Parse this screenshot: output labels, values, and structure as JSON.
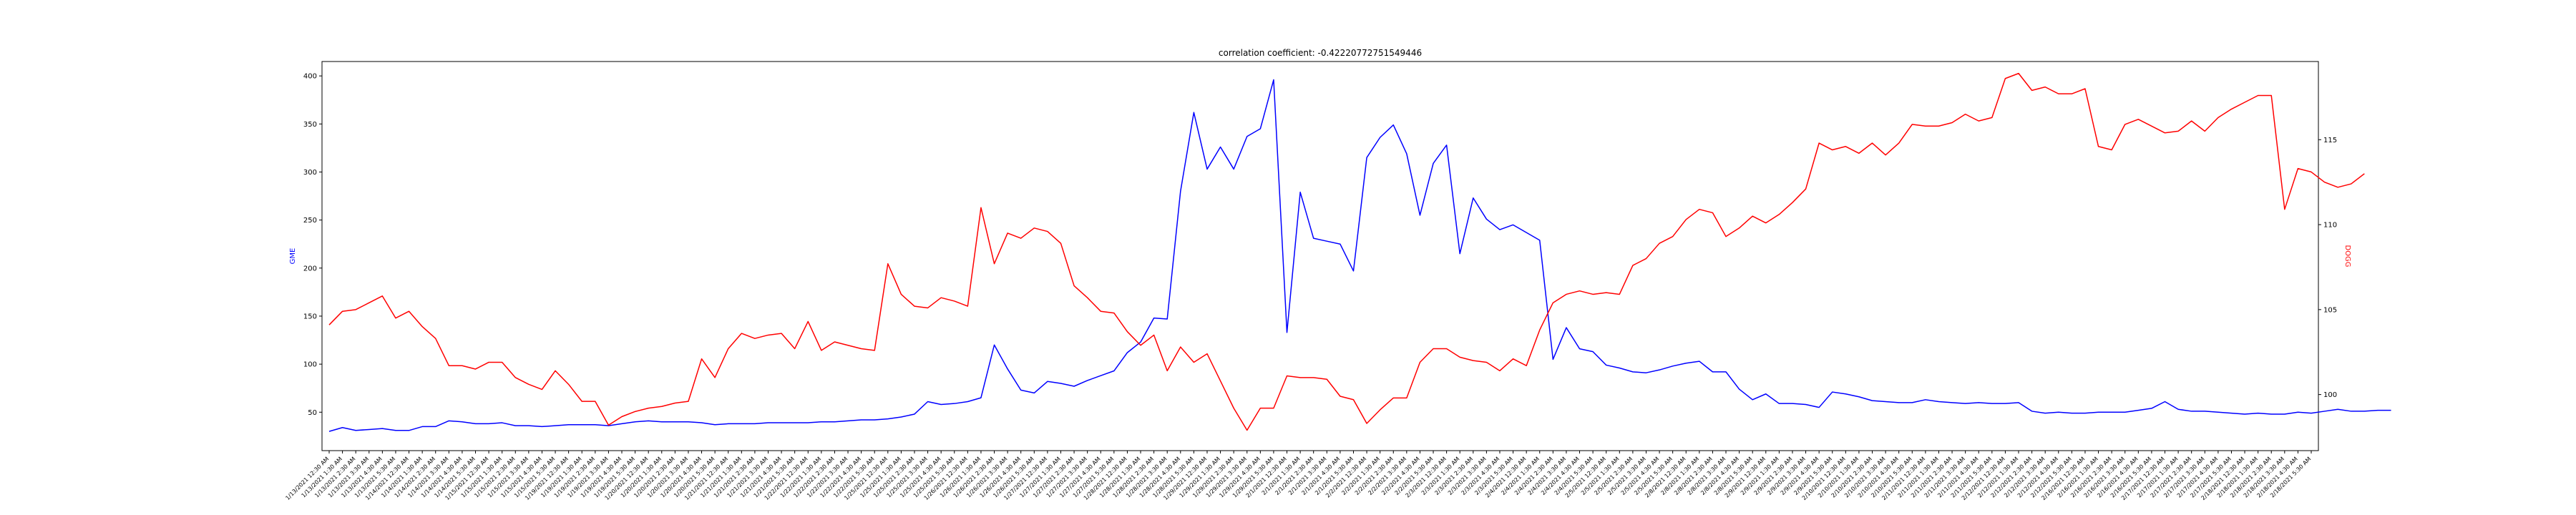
{
  "chart_data": {
    "type": "line",
    "title": "correlation coefficient: -0.42220772751549446",
    "y_left": {
      "label": "GME",
      "ylim": [
        10,
        415
      ],
      "ticks": [
        50,
        100,
        150,
        200,
        250,
        300,
        350,
        400
      ],
      "color": "#0000ff"
    },
    "y_right": {
      "label": "DOGG",
      "ylim": [
        96.7,
        119.6
      ],
      "ticks": [
        100,
        105,
        110,
        115
      ],
      "color": "#ff0000"
    },
    "x_labels": [
      "1/13/2021 12:30 AM",
      "1/13/2021 1:30 AM",
      "1/13/2021 2:30 AM",
      "1/13/2021 3:30 AM",
      "1/13/2021 4:30 AM",
      "1/13/2021 5:30 AM",
      "1/14/2021 12:30 AM",
      "1/14/2021 1:30 AM",
      "1/14/2021 2:30 AM",
      "1/14/2021 3:30 AM",
      "1/14/2021 4:30 AM",
      "1/14/2021 5:30 AM",
      "1/15/2021 12:30 AM",
      "1/15/2021 1:30 AM",
      "1/15/2021 2:30 AM",
      "1/15/2021 3:30 AM",
      "1/15/2021 4:30 AM",
      "1/15/2021 5:30 AM",
      "1/19/2021 12:30 AM",
      "1/19/2021 1:30 AM",
      "1/19/2021 2:30 AM",
      "1/19/2021 3:30 AM",
      "1/19/2021 4:30 AM",
      "1/19/2021 5:30 AM",
      "1/20/2021 12:30 AM",
      "1/20/2021 1:30 AM",
      "1/20/2021 2:30 AM",
      "1/20/2021 3:30 AM",
      "1/20/2021 4:30 AM",
      "1/20/2021 5:30 AM",
      "1/21/2021 12:30 AM",
      "1/21/2021 1:30 AM",
      "1/21/2021 2:30 AM",
      "1/21/2021 3:30 AM",
      "1/21/2021 4:30 AM",
      "1/21/2021 5:30 AM",
      "1/22/2021 12:30 AM",
      "1/22/2021 1:30 AM",
      "1/22/2021 2:30 AM",
      "1/22/2021 3:30 AM",
      "1/22/2021 4:30 AM",
      "1/22/2021 5:30 AM",
      "1/25/2021 12:30 AM",
      "1/25/2021 1:30 AM",
      "1/25/2021 2:30 AM",
      "1/25/2021 3:30 AM",
      "1/25/2021 4:30 AM",
      "1/25/2021 5:30 AM",
      "1/26/2021 12:30 AM",
      "1/26/2021 1:30 AM",
      "1/26/2021 2:30 AM",
      "1/26/2021 3:30 AM",
      "1/26/2021 4:30 AM",
      "1/26/2021 5:30 AM",
      "1/27/2021 12:30 AM",
      "1/27/2021 1:30 AM",
      "1/27/2021 2:30 AM",
      "1/27/2021 3:30 AM",
      "1/27/2021 4:30 AM",
      "1/27/2021 5:30 AM",
      "1/28/2021 12:30 AM",
      "1/28/2021 1:30 AM",
      "1/28/2021 2:30 AM",
      "1/28/2021 3:30 AM",
      "1/28/2021 4:30 AM",
      "1/28/2021 5:30 AM",
      "1/29/2021 12:30 AM",
      "1/29/2021 1:30 AM",
      "1/29/2021 2:30 AM",
      "1/29/2021 3:30 AM",
      "1/29/2021 4:30 AM",
      "1/29/2021 5:30 AM",
      "2/1/2021 12:30 AM",
      "2/1/2021 1:30 AM",
      "2/1/2021 2:30 AM",
      "2/1/2021 3:30 AM",
      "2/1/2021 4:30 AM",
      "2/1/2021 5:30 AM",
      "2/2/2021 12:30 AM",
      "2/2/2021 1:30 AM",
      "2/2/2021 2:30 AM",
      "2/2/2021 3:30 AM",
      "2/2/2021 4:30 AM",
      "2/2/2021 5:30 AM",
      "2/3/2021 12:30 AM",
      "2/3/2021 1:30 AM",
      "2/3/2021 2:30 AM",
      "2/3/2021 3:30 AM",
      "2/3/2021 4:30 AM",
      "2/3/2021 5:30 AM",
      "2/4/2021 12:30 AM",
      "2/4/2021 1:30 AM",
      "2/4/2021 2:30 AM",
      "2/4/2021 3:30 AM",
      "2/4/2021 4:30 AM",
      "2/4/2021 5:30 AM",
      "2/5/2021 12:30 AM",
      "2/5/2021 1:30 AM",
      "2/5/2021 2:30 AM",
      "2/5/2021 3:30 AM",
      "2/5/2021 4:30 AM",
      "2/5/2021 5:30 AM",
      "2/8/2021 12:30 AM",
      "2/8/2021 1:30 AM",
      "2/8/2021 2:30 AM",
      "2/8/2021 3:30 AM",
      "2/8/2021 4:30 AM",
      "2/8/2021 5:30 AM",
      "2/9/2021 12:30 AM",
      "2/9/2021 1:30 AM",
      "2/9/2021 2:30 AM",
      "2/9/2021 3:30 AM",
      "2/9/2021 4:30 AM",
      "2/9/2021 5:30 AM",
      "2/10/2021 12:30 AM",
      "2/10/2021 1:30 AM",
      "2/10/2021 2:30 AM",
      "2/10/2021 3:30 AM",
      "2/10/2021 4:30 AM",
      "2/10/2021 5:30 AM",
      "2/11/2021 12:30 AM",
      "2/11/2021 1:30 AM",
      "2/11/2021 2:30 AM",
      "2/11/2021 3:30 AM",
      "2/11/2021 4:30 AM",
      "2/11/2021 5:30 AM",
      "2/12/2021 12:30 AM",
      "2/12/2021 1:30 AM",
      "2/12/2021 2:30 AM",
      "2/12/2021 3:30 AM",
      "2/12/2021 4:30 AM",
      "2/12/2021 5:30 AM",
      "2/16/2021 12:30 AM",
      "2/16/2021 1:30 AM",
      "2/16/2021 2:30 AM",
      "2/16/2021 3:30 AM",
      "2/16/2021 4:30 AM",
      "2/16/2021 5:30 AM",
      "2/17/2021 12:30 AM",
      "2/17/2021 1:30 AM",
      "2/17/2021 2:30 AM",
      "2/17/2021 3:30 AM",
      "2/17/2021 4:30 AM",
      "2/17/2021 5:30 AM",
      "2/18/2021 12:30 AM",
      "2/18/2021 1:30 AM",
      "2/18/2021 2:30 AM",
      "2/18/2021 3:30 AM",
      "2/18/2021 4:30 AM",
      "2/18/2021 5:30 AM"
    ],
    "series": [
      {
        "name": "GME",
        "axis": "left",
        "color": "#0000ff",
        "values": [
          30,
          34,
          31,
          32,
          33,
          31,
          31,
          35,
          35,
          41,
          40,
          38,
          38,
          39,
          36,
          36,
          35,
          36,
          37,
          37,
          37,
          36,
          38,
          40,
          41,
          40,
          40,
          40,
          39,
          37,
          38,
          38,
          38,
          39,
          39,
          39,
          39,
          40,
          40,
          41,
          42,
          42,
          43,
          45,
          48,
          61,
          58,
          59,
          61,
          65,
          120,
          95,
          73,
          70,
          82,
          80,
          77,
          83,
          88,
          93,
          112,
          123,
          148,
          147,
          280,
          362,
          303,
          326,
          303,
          337,
          345,
          396,
          133,
          279,
          231,
          228,
          225,
          197,
          315,
          336,
          349,
          319,
          255,
          309,
          328,
          215,
          273,
          251,
          240,
          245,
          237,
          229,
          105,
          138,
          116,
          113,
          99,
          96,
          92,
          91,
          94,
          98,
          101,
          103,
          92,
          92,
          74,
          63,
          69,
          59,
          59,
          58,
          55,
          71,
          69,
          66,
          62,
          61,
          60,
          60,
          63,
          61,
          60,
          59,
          60,
          59,
          59,
          60,
          51,
          49,
          50,
          49,
          49,
          50,
          50,
          50,
          52,
          54,
          61,
          53,
          51,
          51,
          50,
          49,
          48,
          49,
          48,
          48,
          50,
          49,
          51,
          53,
          51,
          51,
          52,
          52
        ]
      },
      {
        "name": "DOGG",
        "axis": "right",
        "color": "#ff0000",
        "values": [
          104.1,
          104.9,
          105.0,
          105.4,
          105.8,
          104.5,
          104.9,
          104.0,
          103.3,
          101.7,
          101.7,
          101.5,
          101.9,
          101.9,
          101.0,
          100.6,
          100.3,
          101.4,
          100.6,
          99.6,
          99.6,
          98.2,
          98.7,
          99.0,
          99.2,
          99.3,
          99.5,
          99.6,
          102.1,
          101.0,
          102.7,
          103.6,
          103.3,
          103.5,
          103.6,
          102.7,
          104.3,
          102.6,
          103.1,
          102.9,
          102.7,
          102.6,
          107.7,
          105.9,
          105.2,
          105.1,
          105.7,
          105.5,
          105.2,
          111.0,
          107.7,
          109.5,
          109.2,
          109.8,
          109.6,
          108.9,
          106.4,
          105.7,
          104.9,
          104.8,
          103.7,
          102.9,
          103.5,
          101.4,
          102.8,
          101.9,
          102.4,
          100.8,
          99.2,
          97.9,
          99.2,
          99.2,
          101.1,
          101.0,
          101.0,
          100.9,
          99.9,
          99.7,
          98.3,
          99.1,
          99.8,
          99.8,
          101.9,
          102.7,
          102.7,
          102.2,
          102.0,
          101.9,
          101.4,
          102.1,
          101.7,
          103.8,
          105.4,
          105.9,
          106.1,
          105.9,
          106.0,
          105.9,
          107.6,
          108.0,
          108.9,
          109.3,
          110.3,
          110.9,
          110.7,
          109.3,
          109.8,
          110.5,
          110.1,
          110.6,
          111.3,
          112.1,
          114.8,
          114.4,
          114.6,
          114.2,
          114.8,
          114.1,
          114.8,
          115.9,
          115.8,
          115.8,
          116.0,
          116.5,
          116.1,
          116.3,
          118.6,
          118.9,
          117.9,
          118.1,
          117.7,
          117.7,
          118.0,
          114.6,
          114.4,
          115.9,
          116.2,
          115.8,
          115.4,
          115.5,
          116.1,
          115.5,
          116.3,
          116.8,
          117.2,
          117.6,
          117.6,
          110.9,
          113.3,
          113.1,
          112.5,
          112.2,
          112.4,
          113.0
        ]
      }
    ],
    "grid": false
  }
}
